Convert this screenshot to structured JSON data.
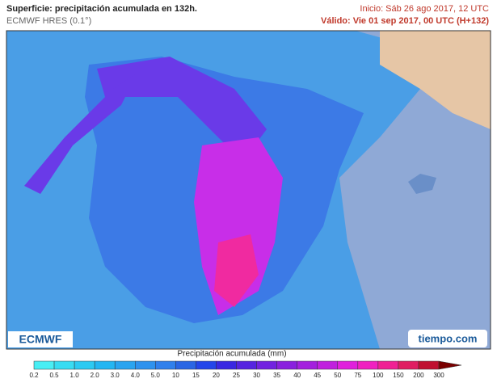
{
  "header": {
    "title": "Superficie: precipitación acumulada en 132h.",
    "model": "ECMWF HRES (0.1°)",
    "init": "Inicio: Sáb 26 ago 2017, 12 UTC",
    "valid": "Válido: Vie 01 sep 2017, 00 UTC (H+132)"
  },
  "logos": {
    "left": "ECMWF",
    "right": "tiempo.com"
  },
  "legend": {
    "title": "Precipitación acumulada (mm)",
    "labels": [
      "0.2",
      "0.5",
      "1.0",
      "2.0",
      "3.0",
      "4.0",
      "5.0",
      "10",
      "15",
      "20",
      "25",
      "30",
      "35",
      "40",
      "45",
      "50",
      "75",
      "100",
      "150",
      "200",
      "300"
    ],
    "colors": [
      "#48eef4",
      "#38dcf2",
      "#2ccaf2",
      "#24b6f2",
      "#2aa4f0",
      "#2e92ee",
      "#3080ec",
      "#2a66e4",
      "#2446ea",
      "#3a28e2",
      "#5624e0",
      "#7222e0",
      "#8a20de",
      "#a420de",
      "#c020de",
      "#e020dc",
      "#f020c0",
      "#f02094",
      "#e01e62",
      "#c01030",
      "#7a0000"
    ]
  }
}
